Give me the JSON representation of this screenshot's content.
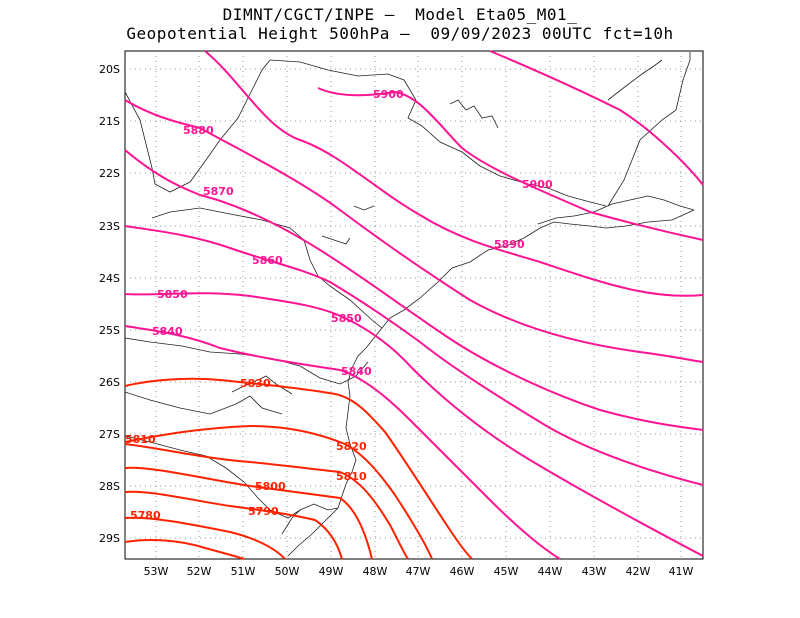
{
  "title_line1": "DIMNT/CGCT/INPE —  Model Eta05_M01_",
  "title_line2": "Geopotential Height 500hPa —  09/09/2023 00UTC fct=10h",
  "lon_labels": [
    "53W",
    "52W",
    "51W",
    "50W",
    "49W",
    "48W",
    "47W",
    "46W",
    "45W",
    "44W",
    "43W",
    "42W",
    "41W"
  ],
  "lat_labels": [
    "20S",
    "21S",
    "22S",
    "23S",
    "24S",
    "25S",
    "26S",
    "27S",
    "28S",
    "29S"
  ],
  "contour_labels": [
    "5900",
    "5900",
    "5890",
    "5880",
    "5870",
    "5860",
    "5850",
    "5850",
    "5840",
    "5840",
    "5830",
    "5820",
    "5810",
    "5810",
    "5800",
    "5790",
    "5780"
  ],
  "chart_data": {
    "type": "contour-map",
    "variable": "Geopotential Height 500hPa",
    "contour_levels": [
      5780,
      5790,
      5800,
      5810,
      5820,
      5830,
      5840,
      5850,
      5860,
      5870,
      5880,
      5890,
      5900
    ],
    "lon_range": [
      -53.6,
      -40.6
    ],
    "lat_range": [
      -29.4,
      -19.6
    ],
    "grid": true,
    "colors": {
      "high": "#ff1493",
      "low": "#ff2200",
      "coast": "#000000",
      "grid": "#999999"
    }
  }
}
